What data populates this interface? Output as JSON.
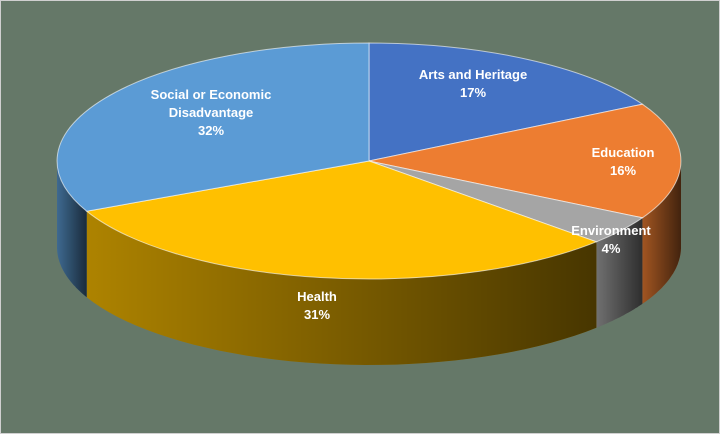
{
  "chart_data": {
    "type": "pie",
    "title": "",
    "categories": [
      "Arts and Heritage",
      "Education",
      "Environment",
      "Health",
      "Social or Economic Disadvantage"
    ],
    "values": [
      17,
      16,
      4,
      31,
      32
    ],
    "data_labels": [
      "17%",
      "16%",
      "4%",
      "31%",
      "32%"
    ],
    "colors": [
      "#4472C4",
      "#ED7D31",
      "#A5A5A5",
      "#FFC000",
      "#5B9BD5"
    ],
    "style": "3d-exploded-none",
    "legend": "none"
  },
  "label_lines": {
    "arts_and_heritage": [
      "Arts and Heritage"
    ],
    "education": [
      "Education"
    ],
    "environment": [
      "Environment"
    ],
    "health": [
      "Health"
    ],
    "social_or_economic_disadvantage": [
      "Social or Economic",
      "Disadvantage"
    ]
  },
  "label_texts": {
    "social_line1": "Social or Economic",
    "social_line2": "Disadvantage"
  }
}
